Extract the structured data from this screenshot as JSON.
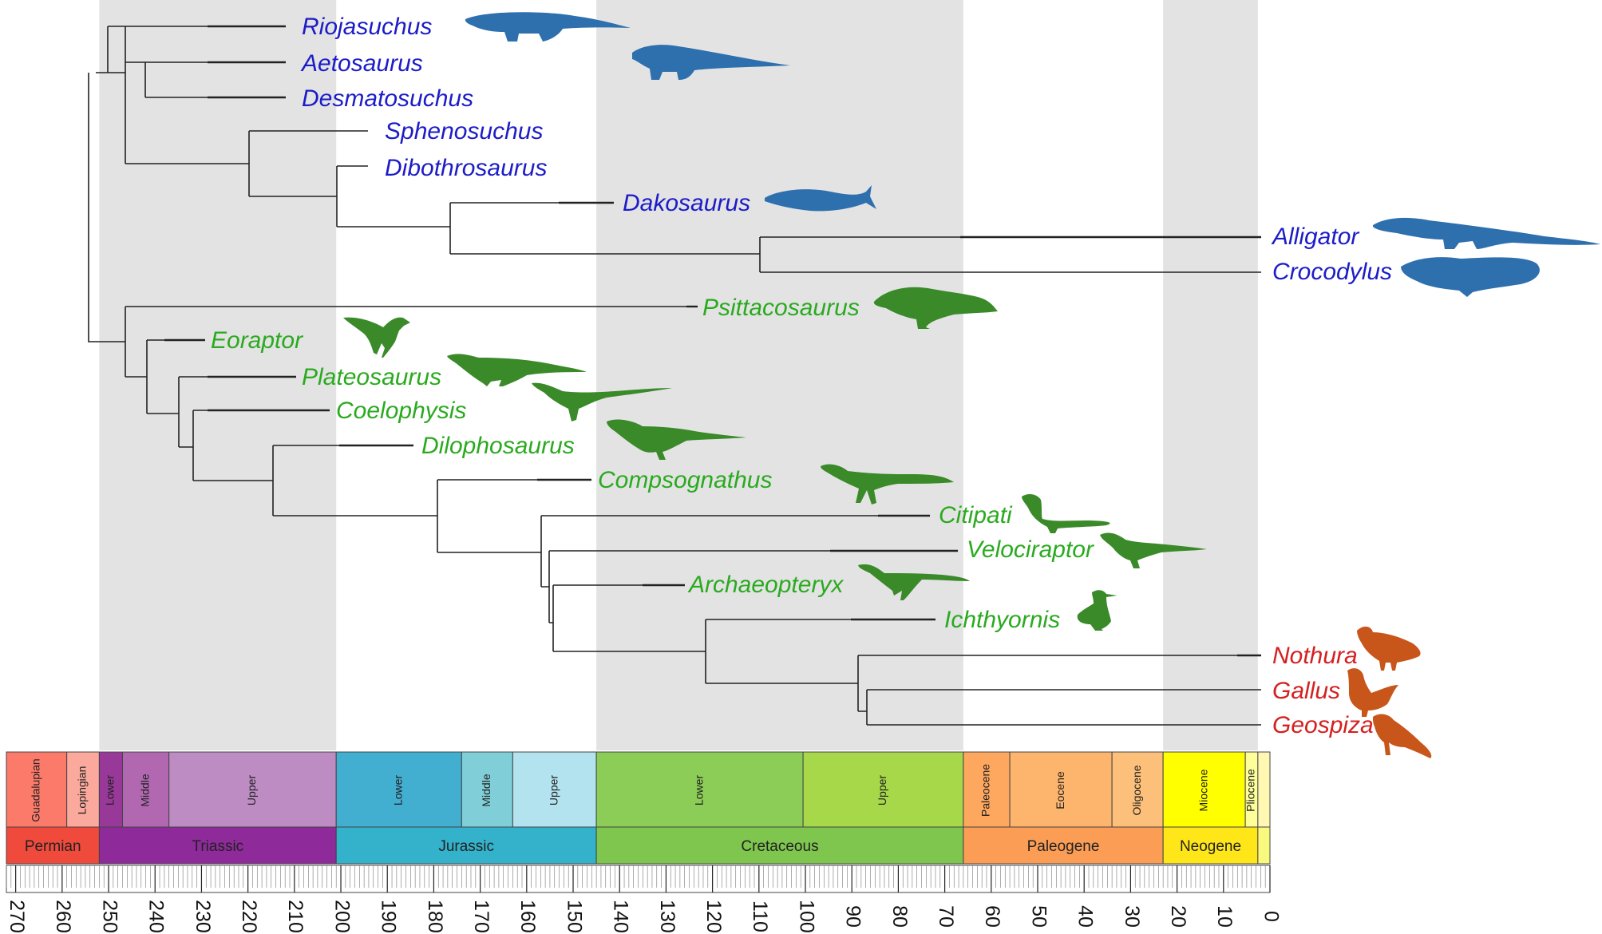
{
  "colors": {
    "pseudosuchia": "#1c1cc8",
    "dinosauria": "#2aaa1f",
    "aves": "#d42020",
    "silhouette_blue": "#2e6fae",
    "silhouette_green": "#3a8a2a",
    "silhouette_orange": "#c8561a",
    "highlight_band": "#e3e3e3"
  },
  "taxa": [
    {
      "name": "Riojasuchus",
      "group": "pseudosuchia"
    },
    {
      "name": "Aetosaurus",
      "group": "pseudosuchia"
    },
    {
      "name": "Desmatosuchus",
      "group": "pseudosuchia"
    },
    {
      "name": "Sphenosuchus",
      "group": "pseudosuchia"
    },
    {
      "name": "Dibothrosaurus",
      "group": "pseudosuchia"
    },
    {
      "name": "Dakosaurus",
      "group": "pseudosuchia"
    },
    {
      "name": "Alligator",
      "group": "pseudosuchia"
    },
    {
      "name": "Crocodylus",
      "group": "pseudosuchia"
    },
    {
      "name": "Psittacosaurus",
      "group": "dinosauria"
    },
    {
      "name": "Eoraptor",
      "group": "dinosauria"
    },
    {
      "name": "Plateosaurus",
      "group": "dinosauria"
    },
    {
      "name": "Coelophysis",
      "group": "dinosauria"
    },
    {
      "name": "Dilophosaurus",
      "group": "dinosauria"
    },
    {
      "name": "Compsognathus",
      "group": "dinosauria"
    },
    {
      "name": "Citipati",
      "group": "dinosauria"
    },
    {
      "name": "Velociraptor",
      "group": "dinosauria"
    },
    {
      "name": "Archaeopteryx",
      "group": "dinosauria"
    },
    {
      "name": "Ichthyornis",
      "group": "dinosauria"
    },
    {
      "name": "Nothura",
      "group": "aves"
    },
    {
      "name": "Gallus",
      "group": "aves"
    },
    {
      "name": "Geospiza",
      "group": "aves"
    }
  ],
  "timescale": {
    "ticks": [
      "270",
      "260",
      "250",
      "240",
      "230",
      "220",
      "210",
      "200",
      "190",
      "180",
      "170",
      "160",
      "150",
      "140",
      "130",
      "120",
      "110",
      "100",
      "90",
      "80",
      "70",
      "60",
      "50",
      "40",
      "30",
      "20",
      "10",
      "0"
    ],
    "periods": [
      {
        "name": "Permian",
        "start": 272,
        "end": 252,
        "color": "#ef4a3c"
      },
      {
        "name": "Triassic",
        "start": 252,
        "end": 201,
        "color": "#8e2a9a"
      },
      {
        "name": "Jurassic",
        "start": 201,
        "end": 145,
        "color": "#34b2cc"
      },
      {
        "name": "Cretaceous",
        "start": 145,
        "end": 66,
        "color": "#7fc64e"
      },
      {
        "name": "Paleogene",
        "start": 66,
        "end": 23,
        "color": "#fb9d54"
      },
      {
        "name": "Neogene",
        "start": 23,
        "end": 2.6,
        "color": "#ffe619"
      },
      {
        "name": "",
        "start": 2.6,
        "end": 0,
        "color": "#f9f97f"
      }
    ],
    "epochs": [
      {
        "name": "Guadalupian",
        "start": 272,
        "end": 259,
        "color": "#fb7a6a"
      },
      {
        "name": "Lopingian",
        "start": 259,
        "end": 252,
        "color": "#fba99c"
      },
      {
        "name": "Lower",
        "start": 252,
        "end": 247,
        "color": "#983999"
      },
      {
        "name": "Middle",
        "start": 247,
        "end": 237,
        "color": "#b168b1"
      },
      {
        "name": "Upper",
        "start": 237,
        "end": 201,
        "color": "#bd8cc3"
      },
      {
        "name": "Lower",
        "start": 201,
        "end": 174,
        "color": "#42aed0"
      },
      {
        "name": "Middle",
        "start": 174,
        "end": 163,
        "color": "#80cfd8"
      },
      {
        "name": "Upper",
        "start": 163,
        "end": 145,
        "color": "#b3e3ee"
      },
      {
        "name": "Lower",
        "start": 145,
        "end": 100.5,
        "color": "#8ccd57"
      },
      {
        "name": "Upper",
        "start": 100.5,
        "end": 66,
        "color": "#a6d84a"
      },
      {
        "name": "Paleocene",
        "start": 66,
        "end": 56,
        "color": "#fda75f"
      },
      {
        "name": "Eocene",
        "start": 56,
        "end": 34,
        "color": "#fdb46c"
      },
      {
        "name": "Oligocene",
        "start": 34,
        "end": 23,
        "color": "#fdc07a"
      },
      {
        "name": "Miocene",
        "start": 23,
        "end": 5.3,
        "color": "#ffff00"
      },
      {
        "name": "Pliocene",
        "start": 5.3,
        "end": 2.6,
        "color": "#ffff99"
      },
      {
        "name": "",
        "start": 2.6,
        "end": 0,
        "color": "#fff7b2"
      }
    ],
    "highlight_bands": [
      {
        "start": 252,
        "end": 201
      },
      {
        "start": 145,
        "end": 66
      },
      {
        "start": 23,
        "end": 2.6
      }
    ]
  }
}
